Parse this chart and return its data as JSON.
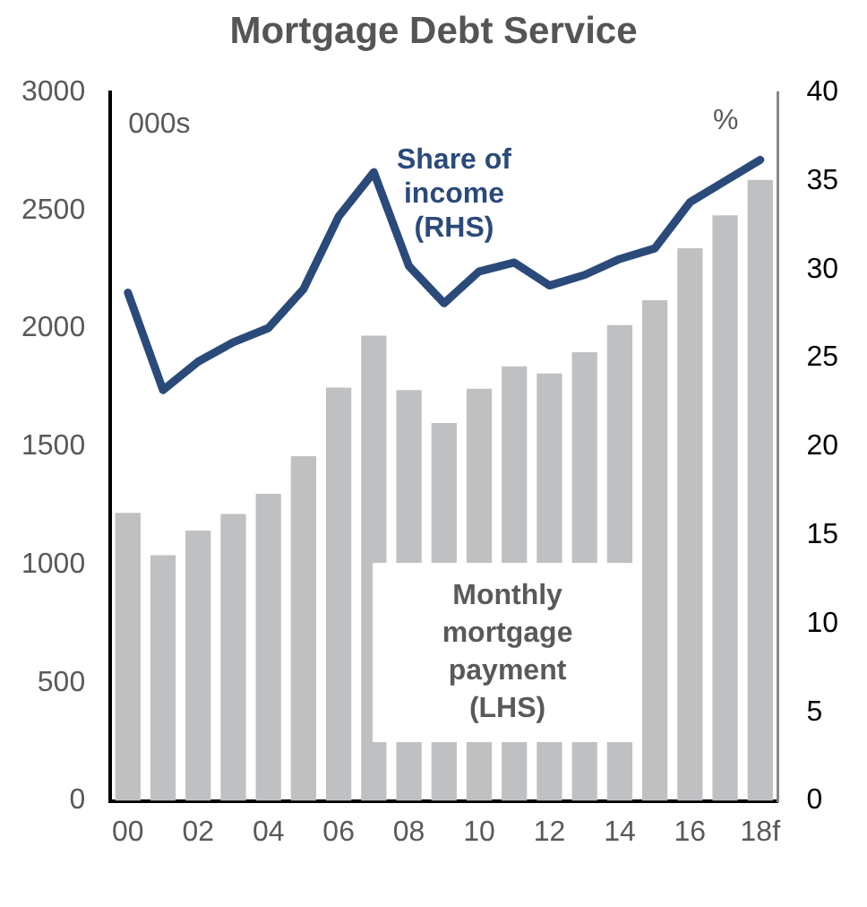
{
  "chart_data": {
    "type": "bar",
    "title": "Mortgage Debt Service",
    "ylabel": "000s",
    "y2label": "%",
    "categories": [
      "00",
      null,
      "02",
      null,
      "04",
      null,
      "06",
      null,
      "08",
      null,
      "10",
      null,
      "12",
      null,
      "14",
      null,
      "16",
      null,
      "18f"
    ],
    "series": [
      {
        "name": "Monthly mortgage payment (LHS)",
        "color": "#bfc0c2",
        "values": [
          1220,
          1040,
          1145,
          1215,
          1300,
          1460,
          1750,
          1970,
          1740,
          1600,
          1745,
          1840,
          1810,
          1900,
          2015,
          2120,
          2340,
          2480,
          2630
        ]
      },
      {
        "name": "Share of income (RHS)",
        "type": "line",
        "axis": "y2",
        "color": "#2a4a7a",
        "values": [
          28.7,
          23.2,
          24.8,
          25.9,
          26.7,
          28.9,
          33,
          35.5,
          30.2,
          28.1,
          29.9,
          30.4,
          29.1,
          29.7,
          30.6,
          31.2,
          33.8,
          35,
          36.2
        ]
      }
    ],
    "ylim": [
      0,
      3000
    ],
    "yticks": [
      0,
      500,
      1000,
      1500,
      2000,
      2500,
      3000
    ],
    "y2lim": [
      0,
      40
    ],
    "y2ticks": [
      0,
      5,
      10,
      15,
      20,
      25,
      30,
      35,
      40
    ],
    "grid": false,
    "legend": false,
    "marker": "none"
  }
}
